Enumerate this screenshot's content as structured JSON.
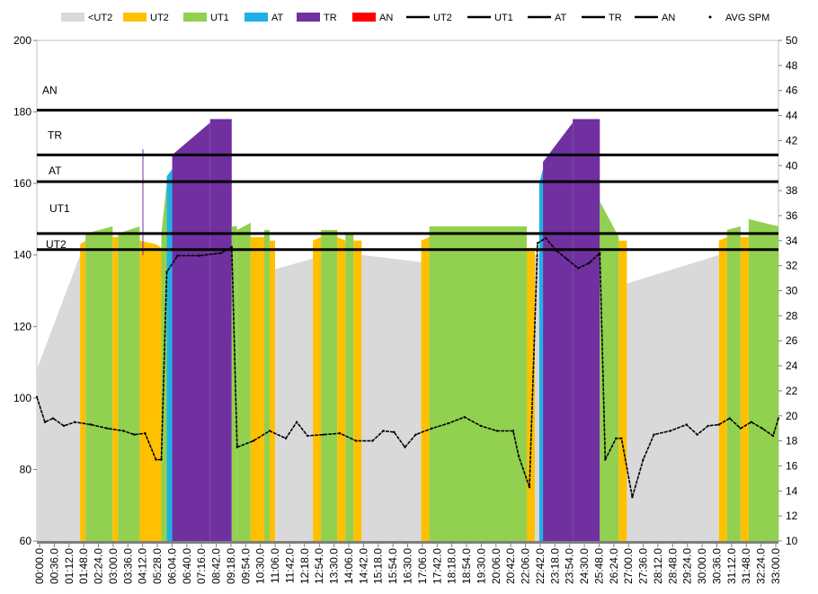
{
  "chart_data": {
    "type": "bar",
    "title": "",
    "xlabel": "",
    "ylabel": "",
    "y_left": {
      "min": 60,
      "max": 200,
      "ticks": [
        60,
        80,
        100,
        120,
        140,
        160,
        180,
        200
      ]
    },
    "y_right": {
      "min": 10,
      "max": 50,
      "ticks": [
        10,
        12,
        14,
        16,
        18,
        20,
        22,
        24,
        26,
        28,
        30,
        32,
        34,
        36,
        38,
        40,
        42,
        44,
        46,
        48,
        50
      ]
    },
    "x_tick_labels": [
      "00:00.0",
      "00:36.0",
      "01:12.0",
      "01:48.0",
      "02:24.0",
      "03:00.0",
      "03:36.0",
      "04:12.0",
      "05:28.0",
      "06:04.0",
      "06:40.0",
      "07:16.0",
      "08:42.0",
      "09:18.0",
      "09:54.0",
      "10:30.0",
      "11:06.0",
      "11:42.0",
      "12:18.0",
      "12:54.0",
      "13:30.0",
      "14:06.0",
      "14:42.0",
      "15:18.0",
      "15:54.0",
      "16:30.0",
      "17:06.0",
      "17:42.0",
      "18:18.0",
      "18:54.0",
      "19:30.0",
      "20:06.0",
      "20:42.0",
      "22:06.0",
      "22:42.0",
      "23:18.0",
      "23:54.0",
      "24:30.0",
      "25:48.0",
      "26:24.0",
      "27:00.0",
      "27:36.0",
      "28:12.0",
      "28:48.0",
      "29:24.0",
      "30:00.0",
      "30:36.0",
      "31:12.0",
      "31:48.0",
      "32:24.0",
      "33:00.0"
    ],
    "legend": [
      {
        "label": "<UT2",
        "kind": "box",
        "color": "#d9d9d9"
      },
      {
        "label": "UT2",
        "kind": "box",
        "color": "#ffc000"
      },
      {
        "label": "UT1",
        "kind": "box",
        "color": "#92d050"
      },
      {
        "label": "AT",
        "kind": "box",
        "color": "#1fb0e6"
      },
      {
        "label": "TR",
        "kind": "box",
        "color": "#7030a0"
      },
      {
        "label": "AN",
        "kind": "box",
        "color": "#ff0000"
      },
      {
        "label": "UT2",
        "kind": "line",
        "color": "#000000"
      },
      {
        "label": "UT1",
        "kind": "line",
        "color": "#000000"
      },
      {
        "label": "AT",
        "kind": "line",
        "color": "#000000"
      },
      {
        "label": "TR",
        "kind": "line",
        "color": "#000000"
      },
      {
        "label": "AN",
        "kind": "line",
        "color": "#000000"
      },
      {
        "label": "AVG SPM",
        "kind": "dot",
        "color": "#000000"
      }
    ],
    "threshold_lines": [
      {
        "name": "UT2",
        "value": 141.5
      },
      {
        "name": "UT1",
        "value": 146
      },
      {
        "name": "AT",
        "value": 160.5
      },
      {
        "name": "TR",
        "value": 168
      },
      {
        "name": "AN",
        "value": 180.5
      }
    ],
    "zone_labels": [
      {
        "text": "AN",
        "value": 186
      },
      {
        "text": "TR",
        "value": 173.5
      },
      {
        "text": "AT",
        "value": 163.5
      },
      {
        "text": "UT1",
        "value": 153
      },
      {
        "text": "UT2",
        "value": 143
      }
    ],
    "zone_colors": {
      "lt_ut2": "#d9d9d9",
      "ut2": "#ffc000",
      "ut1": "#92d050",
      "at": "#1fb0e6",
      "tr": "#7030a0",
      "an": "#ff0000"
    },
    "heart_rate_segments": [
      {
        "x0": 0,
        "x1": 8,
        "hr0": 108,
        "hr1": 140,
        "zone": "lt_ut2",
        "label": "<UT2"
      },
      {
        "x0": 8,
        "x1": 9,
        "hr0": 143,
        "hr1": 144,
        "zone": "ut2",
        "label": "UT2"
      },
      {
        "x0": 9,
        "x1": 14,
        "hr0": 146,
        "hr1": 148,
        "zone": "ut1",
        "label": "UT1"
      },
      {
        "x0": 14,
        "x1": 15,
        "hr0": 145,
        "hr1": 145,
        "zone": "ut2",
        "label": "UT2"
      },
      {
        "x0": 15,
        "x1": 19,
        "hr0": 146,
        "hr1": 148,
        "zone": "ut1",
        "label": "UT1"
      },
      {
        "x0": 19,
        "x1": 22,
        "hr0": 144,
        "hr1": 143,
        "zone": "ut2",
        "label": "UT2"
      },
      {
        "x0": 22,
        "x1": 23,
        "hr0": 143,
        "hr1": 142,
        "zone": "ut2",
        "label": "UT2"
      },
      {
        "x0": 23,
        "x1": 24,
        "hr0": 146,
        "hr1": 160,
        "zone": "ut1",
        "label": "UT1"
      },
      {
        "x0": 24,
        "x1": 25,
        "hr0": 162,
        "hr1": 164,
        "zone": "at",
        "label": "AT"
      },
      {
        "x0": 25,
        "x1": 32,
        "hr0": 168,
        "hr1": 177,
        "zone": "tr",
        "label": "TR"
      },
      {
        "x0": 32,
        "x1": 36,
        "hr0": 178,
        "hr1": 178,
        "zone": "tr",
        "label": "TR"
      },
      {
        "x0": 36,
        "x1": 37,
        "hr0": 148,
        "hr1": 148,
        "zone": "ut1",
        "label": "UT1"
      },
      {
        "x0": 37,
        "x1": 39.5,
        "hr0": 147,
        "hr1": 149,
        "zone": "ut1",
        "label": "UT1"
      },
      {
        "x0": 39.5,
        "x1": 42,
        "hr0": 145,
        "hr1": 145,
        "zone": "ut2",
        "label": "UT2"
      },
      {
        "x0": 42,
        "x1": 43,
        "hr0": 147,
        "hr1": 147,
        "zone": "ut1",
        "label": "UT1"
      },
      {
        "x0": 43,
        "x1": 44,
        "hr0": 144,
        "hr1": 144,
        "zone": "ut2",
        "label": "UT2"
      },
      {
        "x0": 44,
        "x1": 51,
        "hr0": 136,
        "hr1": 139,
        "zone": "lt_ut2",
        "label": "<UT2"
      },
      {
        "x0": 51,
        "x1": 52.5,
        "hr0": 144,
        "hr1": 145,
        "zone": "ut2",
        "label": "UT2"
      },
      {
        "x0": 52.5,
        "x1": 55.5,
        "hr0": 147,
        "hr1": 147,
        "zone": "ut1",
        "label": "UT1"
      },
      {
        "x0": 55.5,
        "x1": 57,
        "hr0": 145,
        "hr1": 144,
        "zone": "ut2",
        "label": "UT2"
      },
      {
        "x0": 57,
        "x1": 58.5,
        "hr0": 146,
        "hr1": 146,
        "zone": "ut1",
        "label": "UT1"
      },
      {
        "x0": 58.5,
        "x1": 60,
        "hr0": 144,
        "hr1": 144,
        "zone": "ut2",
        "label": "UT2"
      },
      {
        "x0": 60,
        "x1": 71,
        "hr0": 140,
        "hr1": 138,
        "zone": "lt_ut2",
        "label": "<UT2"
      },
      {
        "x0": 71,
        "x1": 72.5,
        "hr0": 144,
        "hr1": 145,
        "zone": "ut2",
        "label": "UT2"
      },
      {
        "x0": 72.5,
        "x1": 90.5,
        "hr0": 148,
        "hr1": 148,
        "zone": "ut1",
        "label": "UT1"
      },
      {
        "x0": 90.5,
        "x1": 92,
        "hr0": 142,
        "hr1": 142,
        "zone": "ut2",
        "label": "UT2"
      },
      {
        "x0": 92,
        "x1": 92.8,
        "hr0": 140,
        "hr1": 140,
        "zone": "lt_ut2",
        "label": "<UT2"
      },
      {
        "x0": 92.8,
        "x1": 93.5,
        "hr0": 160,
        "hr1": 164,
        "zone": "at",
        "label": "AT"
      },
      {
        "x0": 93.5,
        "x1": 99,
        "hr0": 166,
        "hr1": 177,
        "zone": "tr",
        "label": "TR"
      },
      {
        "x0": 99,
        "x1": 104,
        "hr0": 178,
        "hr1": 178,
        "zone": "tr",
        "label": "TR"
      },
      {
        "x0": 104,
        "x1": 107.5,
        "hr0": 155,
        "hr1": 145,
        "zone": "ut1",
        "label": "UT1"
      },
      {
        "x0": 107.5,
        "x1": 109,
        "hr0": 144,
        "hr1": 144,
        "zone": "ut2",
        "label": "UT2"
      },
      {
        "x0": 109,
        "x1": 126,
        "hr0": 132,
        "hr1": 140,
        "zone": "lt_ut2",
        "label": "<UT2"
      },
      {
        "x0": 126,
        "x1": 127.5,
        "hr0": 144,
        "hr1": 145,
        "zone": "ut2",
        "label": "UT2"
      },
      {
        "x0": 127.5,
        "x1": 130,
        "hr0": 147,
        "hr1": 148,
        "zone": "ut1",
        "label": "UT1"
      },
      {
        "x0": 130,
        "x1": 131.5,
        "hr0": 145,
        "hr1": 145,
        "zone": "ut2",
        "label": "UT2"
      },
      {
        "x0": 131.5,
        "x1": 137,
        "hr0": 150,
        "hr1": 148,
        "zone": "ut1",
        "label": "UT1"
      }
    ],
    "avg_spm": [
      {
        "x": 0,
        "y": 21.5
      },
      {
        "x": 1.5,
        "y": 19.5
      },
      {
        "x": 3,
        "y": 19.8
      },
      {
        "x": 5,
        "y": 19.2
      },
      {
        "x": 7,
        "y": 19.5
      },
      {
        "x": 10,
        "y": 19.3
      },
      {
        "x": 13,
        "y": 19.0
      },
      {
        "x": 16,
        "y": 18.8
      },
      {
        "x": 18,
        "y": 18.5
      },
      {
        "x": 20,
        "y": 18.6
      },
      {
        "x": 22,
        "y": 16.5
      },
      {
        "x": 23,
        "y": 16.5
      },
      {
        "x": 24,
        "y": 31.5
      },
      {
        "x": 26,
        "y": 32.8
      },
      {
        "x": 30,
        "y": 32.8
      },
      {
        "x": 34,
        "y": 33.0
      },
      {
        "x": 36,
        "y": 33.5
      },
      {
        "x": 37,
        "y": 17.5
      },
      {
        "x": 40,
        "y": 18.0
      },
      {
        "x": 43,
        "y": 18.8
      },
      {
        "x": 46,
        "y": 18.2
      },
      {
        "x": 48,
        "y": 19.5
      },
      {
        "x": 50,
        "y": 18.4
      },
      {
        "x": 53,
        "y": 18.5
      },
      {
        "x": 56,
        "y": 18.6
      },
      {
        "x": 59,
        "y": 18.0
      },
      {
        "x": 62,
        "y": 18.0
      },
      {
        "x": 64,
        "y": 18.8
      },
      {
        "x": 66,
        "y": 18.7
      },
      {
        "x": 68,
        "y": 17.5
      },
      {
        "x": 70,
        "y": 18.5
      },
      {
        "x": 73,
        "y": 19.0
      },
      {
        "x": 76,
        "y": 19.4
      },
      {
        "x": 79,
        "y": 19.9
      },
      {
        "x": 82,
        "y": 19.2
      },
      {
        "x": 85,
        "y": 18.8
      },
      {
        "x": 88,
        "y": 18.8
      },
      {
        "x": 89,
        "y": 16.8
      },
      {
        "x": 91,
        "y": 14.3
      },
      {
        "x": 92.5,
        "y": 33.8
      },
      {
        "x": 94,
        "y": 34.2
      },
      {
        "x": 96,
        "y": 33.2
      },
      {
        "x": 98,
        "y": 32.5
      },
      {
        "x": 100,
        "y": 31.8
      },
      {
        "x": 102,
        "y": 32.2
      },
      {
        "x": 104,
        "y": 33.0
      },
      {
        "x": 105,
        "y": 16.5
      },
      {
        "x": 107,
        "y": 18.2
      },
      {
        "x": 108,
        "y": 18.2
      },
      {
        "x": 110,
        "y": 13.5
      },
      {
        "x": 112,
        "y": 16.5
      },
      {
        "x": 114,
        "y": 18.5
      },
      {
        "x": 117,
        "y": 18.8
      },
      {
        "x": 120,
        "y": 19.3
      },
      {
        "x": 122,
        "y": 18.5
      },
      {
        "x": 124,
        "y": 19.2
      },
      {
        "x": 126,
        "y": 19.3
      },
      {
        "x": 128,
        "y": 19.8
      },
      {
        "x": 130,
        "y": 19.0
      },
      {
        "x": 132,
        "y": 19.5
      },
      {
        "x": 134,
        "y": 19.0
      },
      {
        "x": 136,
        "y": 18.4
      },
      {
        "x": 137,
        "y": 19.8
      }
    ],
    "grid": false,
    "legend_position": "top"
  }
}
